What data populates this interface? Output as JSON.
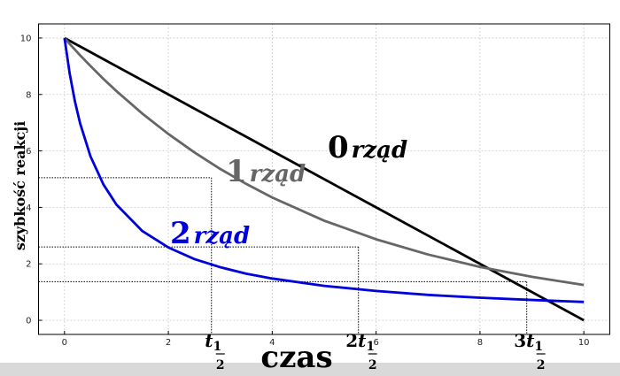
{
  "chart_data": {
    "type": "line",
    "xlabel": "czas",
    "ylabel": "szybkość reakcji",
    "x": [
      0,
      0.1,
      0.2,
      0.3,
      0.5,
      0.75,
      1,
      1.5,
      2,
      2.5,
      3,
      3.5,
      4,
      5,
      6,
      7,
      8,
      9,
      10
    ],
    "series": [
      {
        "name": "0rząd",
        "order": "0",
        "word": "rząd",
        "color": "#000000",
        "values": [
          10,
          9.9,
          9.8,
          9.7,
          9.5,
          9.25,
          9,
          8.5,
          8,
          7.5,
          7,
          6.5,
          6,
          5,
          4,
          3,
          2,
          1,
          0
        ]
      },
      {
        "name": "1rząd",
        "order": "1",
        "word": "rząd",
        "color": "#666666",
        "values": [
          10,
          9.79,
          9.59,
          9.39,
          9.01,
          8.55,
          8.12,
          7.32,
          6.6,
          5.95,
          5.36,
          4.83,
          4.35,
          3.53,
          2.87,
          2.33,
          1.89,
          1.54,
          1.25
        ]
      },
      {
        "name": "2rząd",
        "order": "2",
        "word": "rząd",
        "color": "#0000dd",
        "values": [
          10,
          8.74,
          7.76,
          6.98,
          5.81,
          4.81,
          4.1,
          3.16,
          2.58,
          2.17,
          1.88,
          1.65,
          1.48,
          1.22,
          1.04,
          0.9,
          0.8,
          0.72,
          0.65
        ]
      }
    ],
    "half_lives": [
      {
        "x": 2.83,
        "y": 5.05,
        "symbol": "t",
        "num": "1",
        "den": "2"
      },
      {
        "x": 5.66,
        "y": 2.6,
        "prefix": "2",
        "symbol": "t",
        "num": "1",
        "den": "2"
      },
      {
        "x": 8.9,
        "y": 1.37,
        "prefix": "3",
        "symbol": "t",
        "num": "1",
        "den": "2"
      }
    ],
    "xlim": [
      -0.5,
      10.5
    ],
    "ylim": [
      -0.5,
      10.5
    ],
    "xticks": [
      0,
      2,
      4,
      6,
      8,
      10
    ],
    "yticks": [
      0,
      2,
      4,
      6,
      8,
      10
    ],
    "grid": true
  }
}
